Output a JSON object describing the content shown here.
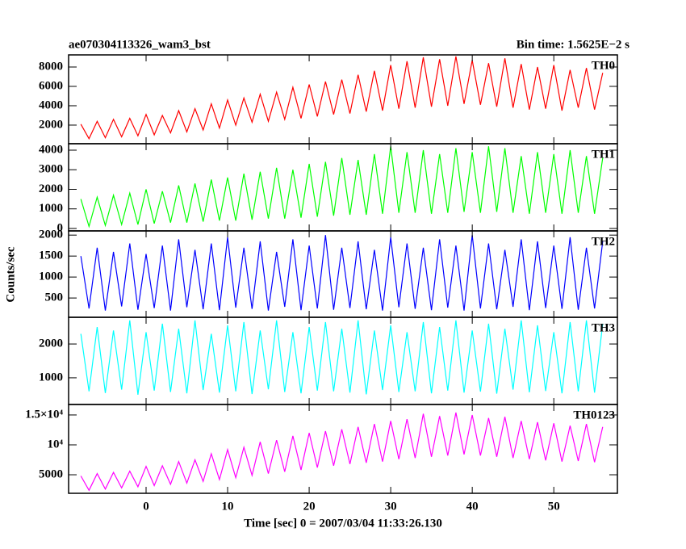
{
  "title": "ae070304113326_wam3_bst",
  "subtitle": "Bin time: 1.5625E−2 s",
  "ylabel": "Counts/sec",
  "xlabel": "Time [sec] 0 = 2007/03/04 11:33:26.130",
  "chart_data": [
    {
      "type": "line",
      "label": "TH0",
      "color": "#ff0000",
      "x": [
        -8,
        -7,
        -6,
        -5,
        -4,
        -3,
        -2,
        -1,
        0,
        1,
        2,
        3,
        4,
        5,
        6,
        7,
        8,
        9,
        10,
        11,
        12,
        13,
        14,
        15,
        16,
        17,
        18,
        19,
        20,
        21,
        22,
        23,
        24,
        25,
        26,
        27,
        28,
        29,
        30,
        31,
        32,
        33,
        34,
        35,
        36,
        37,
        38,
        39,
        40,
        41,
        42,
        43,
        44,
        45,
        46,
        47,
        48,
        49,
        50,
        51,
        52,
        53,
        54,
        55,
        56
      ],
      "values": [
        2100,
        600,
        2400,
        700,
        2600,
        800,
        2700,
        900,
        3100,
        1000,
        3000,
        1200,
        3500,
        1300,
        3700,
        1500,
        4200,
        1700,
        4600,
        2000,
        4800,
        2300,
        5200,
        2400,
        5400,
        2600,
        5900,
        2700,
        6200,
        2900,
        6500,
        3100,
        6700,
        3200,
        7200,
        3400,
        7600,
        3500,
        8200,
        3700,
        8600,
        3800,
        9000,
        3900,
        8800,
        4000,
        9100,
        4200,
        8700,
        4100,
        8400,
        3900,
        8900,
        3800,
        8300,
        3600,
        8000,
        3700,
        8200,
        3500,
        7700,
        3800,
        7900,
        3600,
        7400
      ],
      "xlim": [
        -9.5,
        57.8
      ],
      "xticks": [
        0,
        10,
        20,
        30,
        40,
        50
      ],
      "ylim": [
        80,
        9250
      ],
      "yticks": [
        2000,
        4000,
        6000,
        8000
      ]
    },
    {
      "type": "line",
      "label": "TH1",
      "color": "#00ff00",
      "x": [
        -8,
        -7,
        -6,
        -5,
        -4,
        -3,
        -2,
        -1,
        0,
        1,
        2,
        3,
        4,
        5,
        6,
        7,
        8,
        9,
        10,
        11,
        12,
        13,
        14,
        15,
        16,
        17,
        18,
        19,
        20,
        21,
        22,
        23,
        24,
        25,
        26,
        27,
        28,
        29,
        30,
        31,
        32,
        33,
        34,
        35,
        36,
        37,
        38,
        39,
        40,
        41,
        42,
        43,
        44,
        45,
        46,
        47,
        48,
        49,
        50,
        51,
        52,
        53,
        54,
        55,
        56
      ],
      "values": [
        1500,
        100,
        1600,
        150,
        1700,
        200,
        1800,
        200,
        2000,
        250,
        1900,
        300,
        2200,
        300,
        2300,
        350,
        2500,
        400,
        2600,
        400,
        2800,
        450,
        2900,
        500,
        3100,
        500,
        3000,
        550,
        3300,
        600,
        3400,
        650,
        3600,
        700,
        3500,
        700,
        3800,
        750,
        4200,
        800,
        3900,
        800,
        4000,
        750,
        3800,
        800,
        4100,
        850,
        3900,
        800,
        4200,
        850,
        4100,
        800,
        3700,
        750,
        3900,
        800,
        3800,
        750,
        4000,
        800,
        3700,
        750,
        3600
      ],
      "xlim": [
        -9.5,
        57.8
      ],
      "xticks": [
        0,
        10,
        20,
        30,
        40,
        50
      ],
      "ylim": [
        -125,
        4330
      ],
      "yticks": [
        0,
        1000,
        2000,
        3000,
        4000
      ]
    },
    {
      "type": "line",
      "label": "TH2",
      "color": "#0000ff",
      "x": [
        -8,
        -7,
        -6,
        -5,
        -4,
        -3,
        -2,
        -1,
        0,
        1,
        2,
        3,
        4,
        5,
        6,
        7,
        8,
        9,
        10,
        11,
        12,
        13,
        14,
        15,
        16,
        17,
        18,
        19,
        20,
        21,
        22,
        23,
        24,
        25,
        26,
        27,
        28,
        29,
        30,
        31,
        32,
        33,
        34,
        35,
        36,
        37,
        38,
        39,
        40,
        41,
        42,
        43,
        44,
        45,
        46,
        47,
        48,
        49,
        50,
        51,
        52,
        53,
        54,
        55,
        56
      ],
      "values": [
        1500,
        250,
        1700,
        200,
        1600,
        300,
        1800,
        220,
        1550,
        260,
        1750,
        200,
        1900,
        280,
        1650,
        230,
        1800,
        210,
        1950,
        270,
        1700,
        240,
        1850,
        200,
        1600,
        290,
        1900,
        210,
        1750,
        250,
        2000,
        220,
        1700,
        260,
        1850,
        230,
        1650,
        200,
        1950,
        280,
        1800,
        240,
        1700,
        210,
        1900,
        270,
        1750,
        200,
        2000,
        250,
        1800,
        230,
        1650,
        290,
        1900,
        210,
        1850,
        260,
        1750,
        240,
        1950,
        220,
        1700,
        250,
        1850
      ],
      "xlim": [
        -9.5,
        57.8
      ],
      "xticks": [
        0,
        10,
        20,
        30,
        40,
        50
      ],
      "ylim": [
        40,
        2100
      ],
      "yticks": [
        500,
        1000,
        1500,
        2000
      ]
    },
    {
      "type": "line",
      "label": "TH3",
      "color": "#00ffff",
      "x": [
        -8,
        -7,
        -6,
        -5,
        -4,
        -3,
        -2,
        -1,
        0,
        1,
        2,
        3,
        4,
        5,
        6,
        7,
        8,
        9,
        10,
        11,
        12,
        13,
        14,
        15,
        16,
        17,
        18,
        19,
        20,
        21,
        22,
        23,
        24,
        25,
        26,
        27,
        28,
        29,
        30,
        31,
        32,
        33,
        34,
        35,
        36,
        37,
        38,
        39,
        40,
        41,
        42,
        43,
        44,
        45,
        46,
        47,
        48,
        49,
        50,
        51,
        52,
        53,
        54,
        55,
        56
      ],
      "values": [
        2300,
        600,
        2500,
        550,
        2400,
        650,
        2700,
        500,
        2350,
        620,
        2600,
        580,
        2450,
        540,
        2700,
        640,
        2300,
        560,
        2550,
        600,
        2650,
        520,
        2400,
        660,
        2700,
        580,
        2350,
        540,
        2500,
        620,
        2650,
        600,
        2450,
        560,
        2700,
        510,
        2400,
        640,
        2550,
        580,
        2350,
        600,
        2650,
        540,
        2500,
        620,
        2700,
        560,
        2400,
        590,
        2600,
        530,
        2450,
        650,
        2700,
        570,
        2550,
        610,
        2350,
        540,
        2650,
        600,
        2700,
        560,
        2600
      ],
      "xlim": [
        -9.5,
        57.8
      ],
      "xticks": [
        0,
        10,
        20,
        30,
        40,
        50
      ],
      "ylim": [
        210,
        2790
      ],
      "yticks": [
        1000,
        2000
      ]
    },
    {
      "type": "line",
      "label": "TH0123",
      "color": "#ff00ff",
      "x": [
        -8,
        -7,
        -6,
        -5,
        -4,
        -3,
        -2,
        -1,
        0,
        1,
        2,
        3,
        4,
        5,
        6,
        7,
        8,
        9,
        10,
        11,
        12,
        13,
        14,
        15,
        16,
        17,
        18,
        19,
        20,
        21,
        22,
        23,
        24,
        25,
        26,
        27,
        28,
        29,
        30,
        31,
        32,
        33,
        34,
        35,
        36,
        37,
        38,
        39,
        40,
        41,
        42,
        43,
        44,
        45,
        46,
        47,
        48,
        49,
        50,
        51,
        52,
        53,
        54,
        55,
        56
      ],
      "values": [
        4800,
        2400,
        5200,
        2600,
        5400,
        2800,
        5600,
        3000,
        6400,
        3200,
        6500,
        3400,
        7200,
        3600,
        7500,
        3900,
        8500,
        4200,
        9200,
        4500,
        9600,
        4900,
        10500,
        5200,
        10800,
        5500,
        11500,
        5800,
        12000,
        6200,
        12300,
        6500,
        12600,
        6800,
        13000,
        7000,
        13500,
        7200,
        14000,
        7600,
        14300,
        7800,
        15200,
        8000,
        14800,
        8200,
        15400,
        8400,
        15000,
        8200,
        14500,
        8000,
        14700,
        7800,
        14000,
        7600,
        13800,
        7400,
        13600,
        7200,
        13200,
        7300,
        13500,
        7100,
        13000
      ],
      "xlim": [
        -9.5,
        57.8
      ],
      "xticks": [
        0,
        10,
        20,
        30,
        40,
        50
      ],
      "ylim": [
        1900,
        16750
      ],
      "yticks": [
        5000,
        {
          "value": 10000,
          "label": "10⁴"
        },
        {
          "value": 15000,
          "label": "1.5×10⁴"
        }
      ]
    }
  ]
}
